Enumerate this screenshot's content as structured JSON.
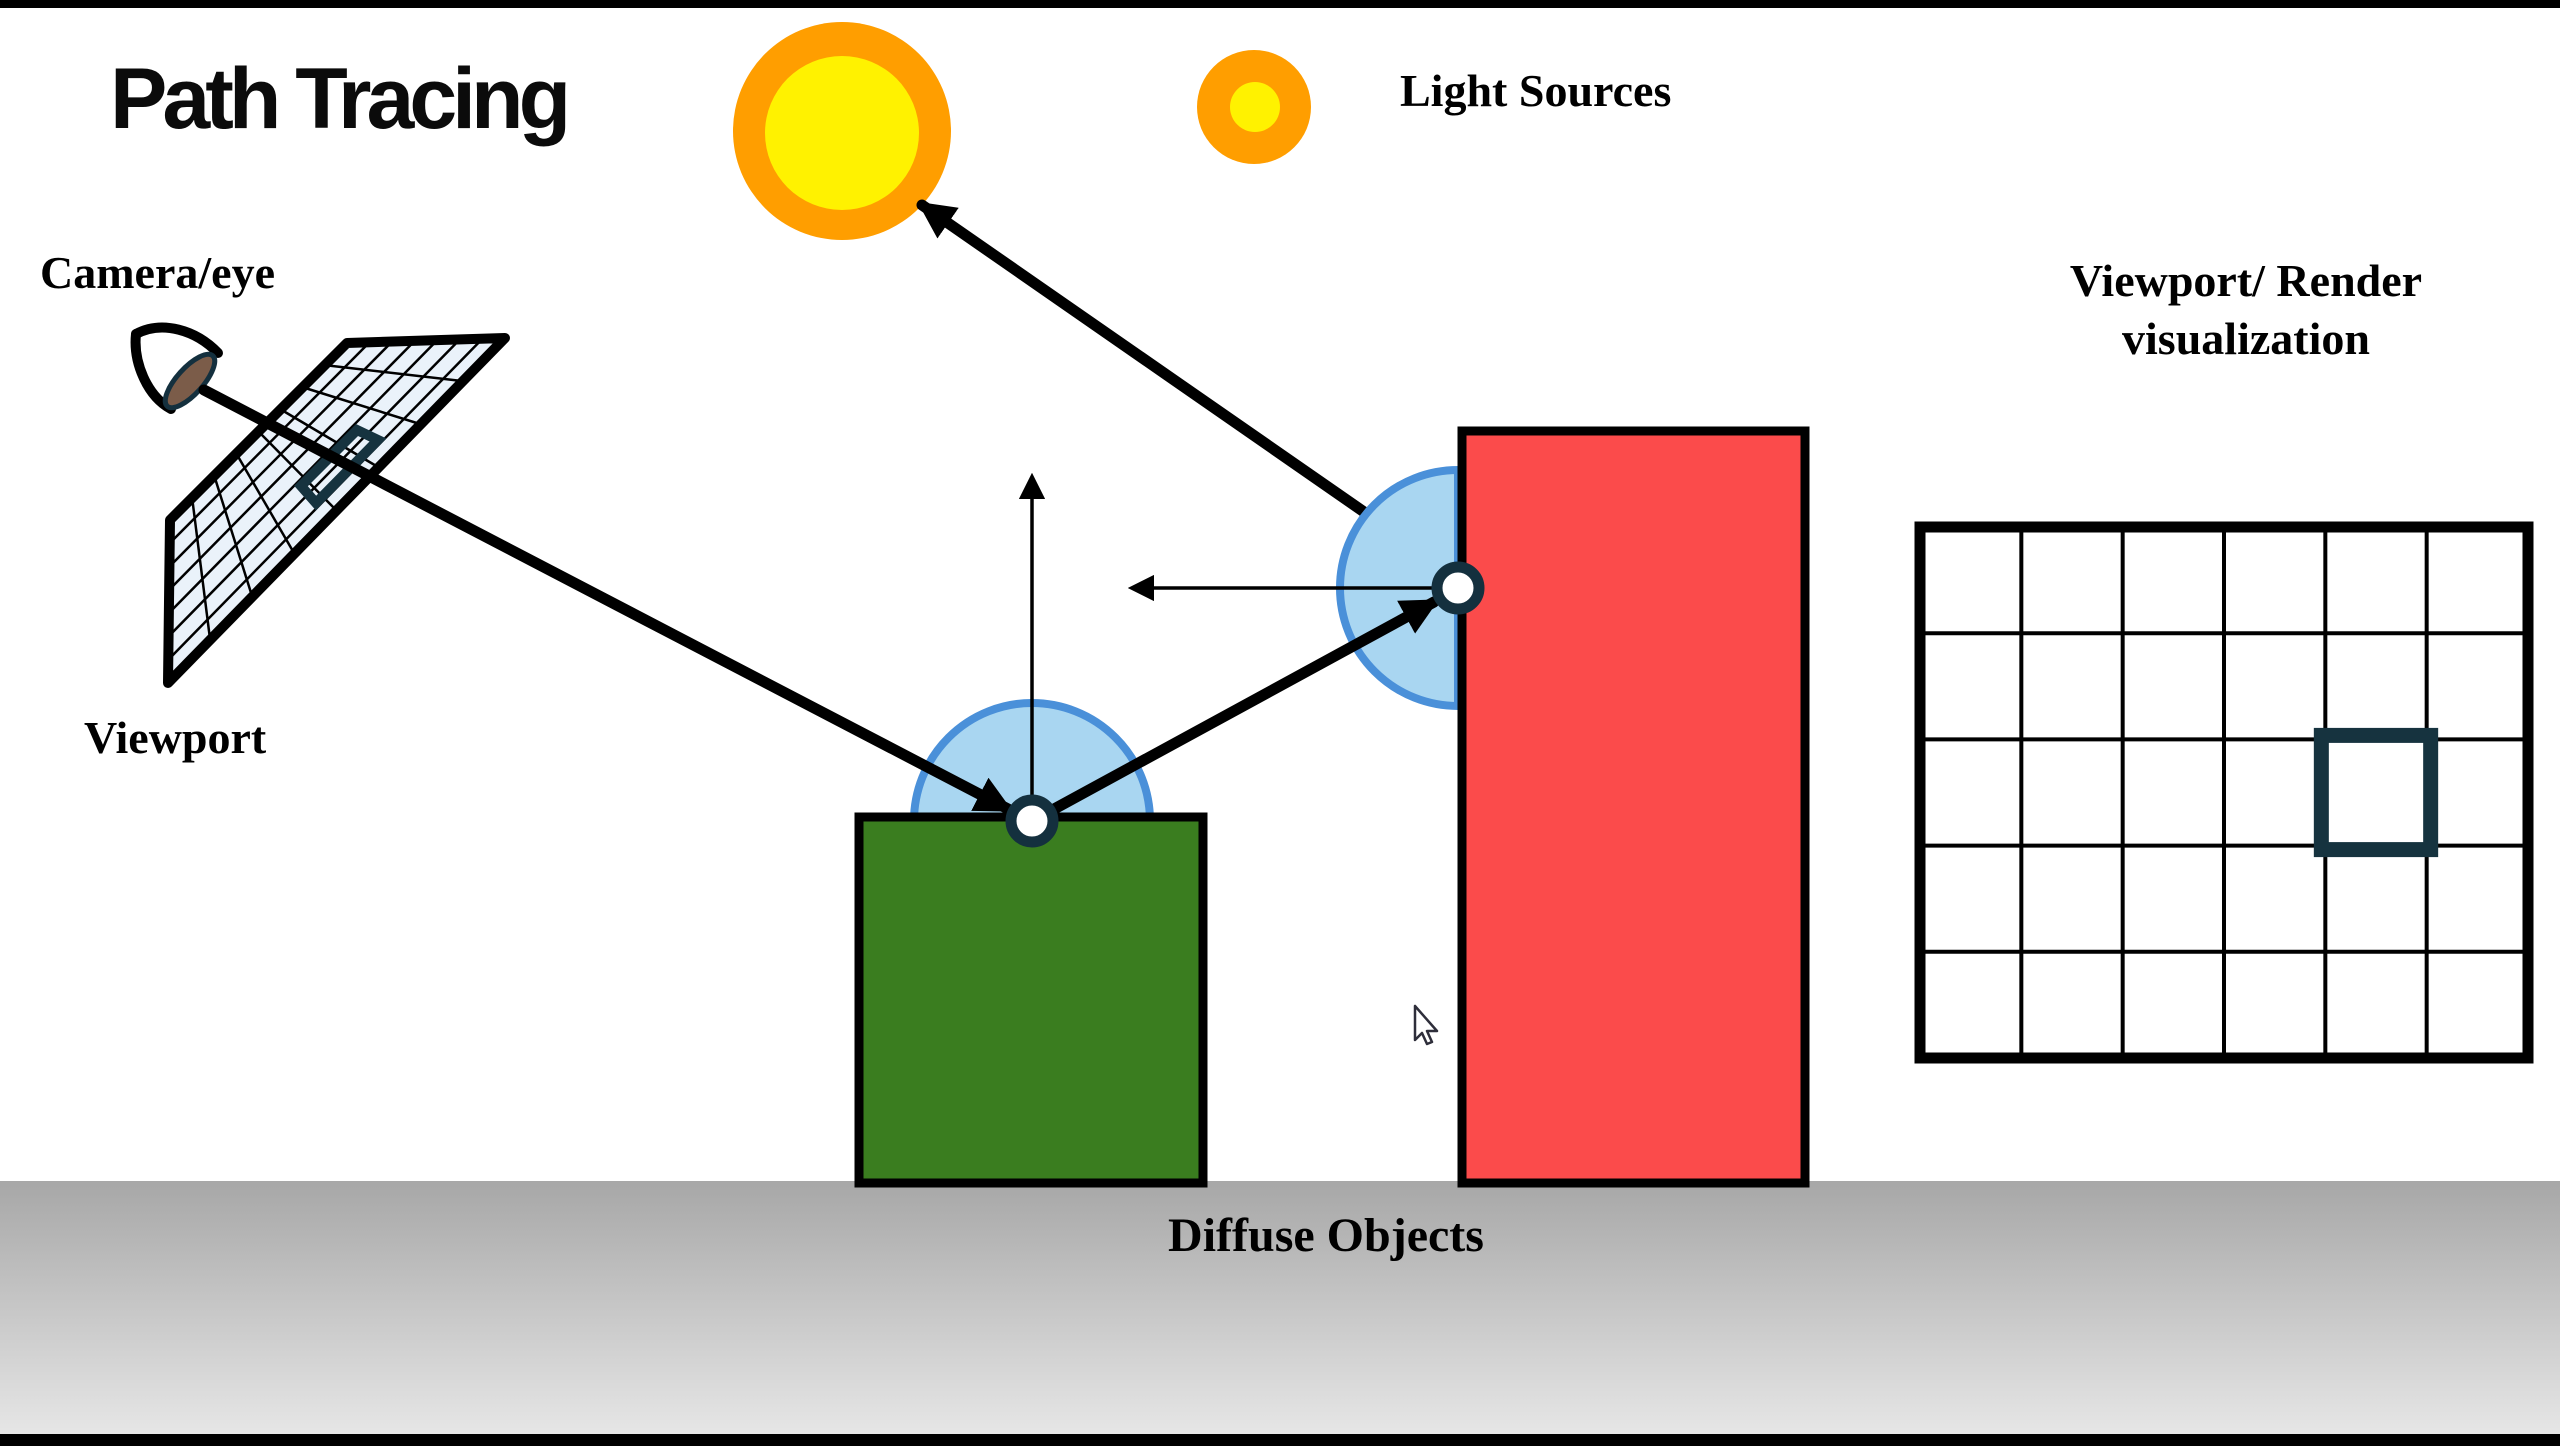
{
  "title": "Path Tracing",
  "labels": {
    "camera_eye": "Camera/eye",
    "light_sources": "Light Sources",
    "viewport": "Viewport",
    "render_visualization_line1": "Viewport/ Render",
    "render_visualization_line2": "visualization",
    "diffuse_objects": "Diffuse Objects"
  },
  "icons": {
    "camera": "eye-icon",
    "light_large": "sun-icon-large",
    "light_small": "sun-icon-small",
    "pointer": "mouse-cursor-arrow"
  },
  "colors": {
    "ink": "#000000",
    "sun_outer": "#FF9E00",
    "sun_inner": "#FFF200",
    "green_box": "#3A7D1F",
    "red_box": "#FB4B4B",
    "hemi_fill": "#A9D6F1",
    "hemi_stroke": "#4A90D9",
    "node_stroke": "#14303E",
    "viewport_fill": "#EAF2FA",
    "pixel_highlight": "#16333F",
    "lens_brown": "#7B5C49",
    "ground_top": "#A7A7A7",
    "ground_bottom": "#E6E6E6"
  },
  "render_grid": {
    "columns": 6,
    "rows": 5,
    "highlight_cell": {
      "column": 5,
      "row": 3
    }
  },
  "viewport_grid": {
    "long_lines": 6,
    "cross_lines": 7,
    "highlighted_pixel": true
  },
  "scene": {
    "bounce_nodes": 2,
    "light_sources": 2,
    "diffuse_boxes": 2
  }
}
